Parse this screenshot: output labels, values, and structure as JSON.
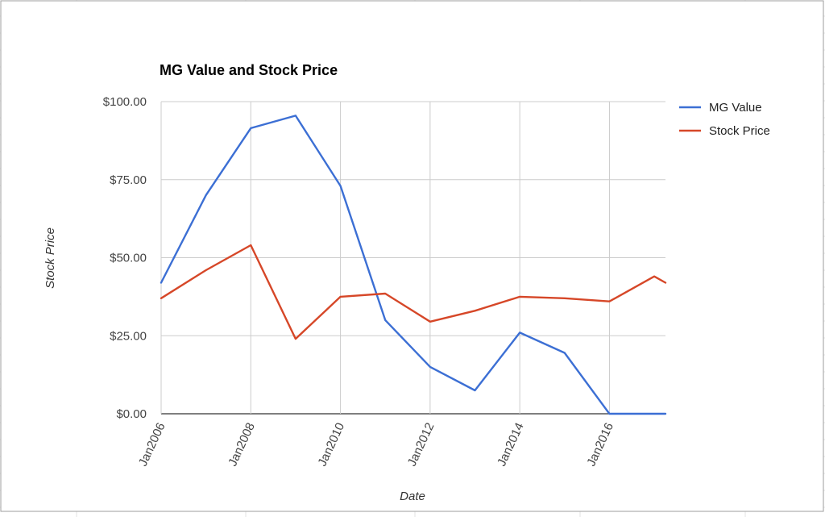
{
  "chart_data": {
    "type": "line",
    "title": "MG Value and Stock Price",
    "xlabel": "Date",
    "ylabel": "Stock Price",
    "x": [
      "2006-01",
      "2007-01",
      "2008-01",
      "2009-01",
      "2010-01",
      "2011-01",
      "2012-01",
      "2013-01",
      "2014-01",
      "2015-01",
      "2016-01",
      "2017-01",
      "2017-04"
    ],
    "x_ticks": [
      {
        "label": "Jan2006",
        "date": "2006-01"
      },
      {
        "label": "Jan2008",
        "date": "2008-01"
      },
      {
        "label": "Jan2010",
        "date": "2010-01"
      },
      {
        "label": "Jan2012",
        "date": "2012-01"
      },
      {
        "label": "Jan2014",
        "date": "2014-01"
      },
      {
        "label": "Jan2016",
        "date": "2016-01"
      }
    ],
    "xlim": [
      "2006-01",
      "2017-04"
    ],
    "ylim": [
      0,
      100
    ],
    "y_ticks": [
      {
        "label": "$0.00",
        "value": 0
      },
      {
        "label": "$25.00",
        "value": 25
      },
      {
        "label": "$50.00",
        "value": 50
      },
      {
        "label": "$75.00",
        "value": 75
      },
      {
        "label": "$100.00",
        "value": 100
      }
    ],
    "grid": true,
    "legend_position": "right",
    "series": [
      {
        "name": "MG Value",
        "color": "#3c6fd4",
        "values": [
          42,
          70,
          91.5,
          95.5,
          73,
          30,
          15,
          7.5,
          26,
          19.5,
          0,
          0,
          0
        ]
      },
      {
        "name": "Stock Price",
        "color": "#d64728",
        "values": [
          37,
          46,
          54,
          24,
          37.5,
          38.5,
          29.5,
          33,
          37.5,
          37,
          36,
          44,
          42
        ]
      }
    ]
  }
}
